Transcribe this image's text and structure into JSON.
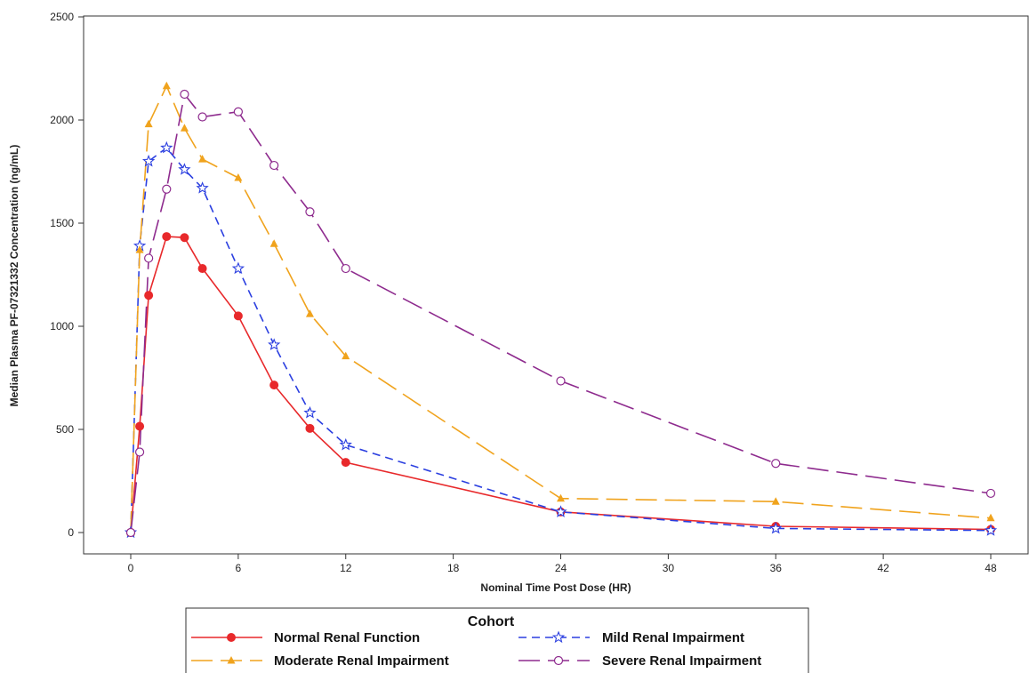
{
  "chart_data": {
    "type": "line",
    "xlabel": "Nominal Time Post Dose (HR)",
    "ylabel": "Median Plasma PF-07321332 Concentration (ng/mL)",
    "xlim": [
      0,
      48
    ],
    "ylim": [
      0,
      2500
    ],
    "x_ticks": [
      0,
      6,
      12,
      18,
      24,
      30,
      36,
      42,
      48
    ],
    "y_ticks": [
      0,
      500,
      1000,
      1500,
      2000,
      2500
    ],
    "grid": false,
    "legend": {
      "title": "Cohort",
      "position": "bottom"
    },
    "series": [
      {
        "name": "Normal Renal Function",
        "color": "#e8292b",
        "marker": "filled-circle",
        "dash": "solid",
        "x": [
          0,
          0.5,
          1,
          2,
          3,
          4,
          6,
          8,
          10,
          12,
          24,
          36,
          48
        ],
        "y": [
          0,
          515,
          1150,
          1435,
          1430,
          1280,
          1050,
          715,
          505,
          340,
          100,
          30,
          15
        ]
      },
      {
        "name": "Mild Renal Impairment",
        "color": "#2b3fe0",
        "marker": "star",
        "dash": "short-dash",
        "x": [
          0,
          0.5,
          1,
          2,
          3,
          4,
          6,
          8,
          10,
          12,
          24,
          36,
          48
        ],
        "y": [
          0,
          1390,
          1800,
          1865,
          1760,
          1670,
          1280,
          910,
          580,
          425,
          100,
          20,
          10
        ]
      },
      {
        "name": "Moderate Renal Impairment",
        "color": "#f0a31d",
        "marker": "filled-triangle",
        "dash": "long-dash",
        "x": [
          0,
          0.5,
          1,
          2,
          3,
          4,
          6,
          8,
          10,
          12,
          24,
          36,
          48
        ],
        "y": [
          0,
          1370,
          1980,
          2165,
          1960,
          1810,
          1720,
          1400,
          1060,
          855,
          165,
          150,
          70
        ]
      },
      {
        "name": "Severe Renal Impairment",
        "color": "#8e2b8e",
        "marker": "open-circle",
        "dash": "long-dash",
        "x": [
          0,
          0.5,
          1,
          2,
          3,
          4,
          6,
          8,
          10,
          12,
          24,
          36,
          48
        ],
        "y": [
          0,
          390,
          1330,
          1665,
          2125,
          2015,
          2040,
          1780,
          1555,
          1280,
          735,
          335,
          190
        ]
      }
    ]
  }
}
